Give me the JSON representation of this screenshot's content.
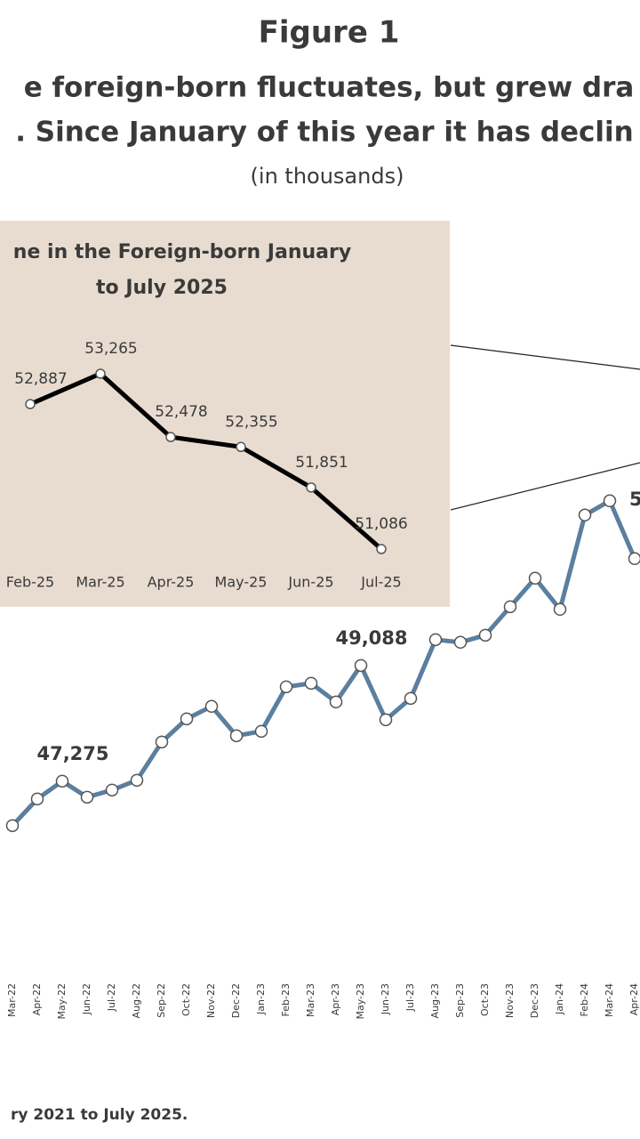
{
  "header": {
    "title": "Figure 1",
    "subtitle": [
      "e foreign-born fluctuates, but grew dra",
      ". Since January of this year it has declin"
    ],
    "unit_note": "(in thousands)"
  },
  "chart_data": [
    {
      "type": "line",
      "categories": [
        "Mar-22",
        "Apr-22",
        "May-22",
        "Jun-22",
        "Jul-22",
        "Aug-22",
        "Sep-22",
        "Oct-22",
        "Nov-22",
        "Dec-22",
        "Jan-23",
        "Feb-23",
        "Mar-23",
        "Apr-23",
        "May-23",
        "Jun-23",
        "Jul-23",
        "Aug-23",
        "Sep-23",
        "Oct-23",
        "Nov-23",
        "Dec-23",
        "Jan-24",
        "Feb-24",
        "Mar-24",
        "Apr-24"
      ],
      "series": [
        {
          "color": "#5b7f9e",
          "values": [
            46578,
            46996,
            47275,
            47024,
            47136,
            47289,
            47889,
            48251,
            48447,
            47986,
            48056,
            48753,
            48809,
            48516,
            49088,
            48237,
            48572,
            49492,
            49451,
            49562,
            50008,
            50455,
            49967,
            51445,
            51668,
            50762
          ],
          "value_labels": [
            null,
            null,
            "47,275",
            null,
            null,
            null,
            null,
            null,
            null,
            null,
            null,
            null,
            null,
            null,
            "49,088",
            null,
            null,
            null,
            null,
            null,
            null,
            null,
            null,
            null,
            null,
            null
          ]
        }
      ],
      "ylim": [
        45000,
        52000
      ],
      "annotation": "5"
    },
    {
      "type": "line",
      "title": [
        "ne in the Foreign-born January",
        "to July 2025"
      ],
      "categories": [
        "Feb-25",
        "Mar-25",
        "Apr-25",
        "May-25",
        "Jun-25",
        "Jul-25"
      ],
      "series": [
        {
          "color": "#000000",
          "values": [
            52887,
            53265,
            52478,
            52355,
            51851,
            51086
          ],
          "value_labels": [
            "52,887",
            "53,265",
            "52,478",
            "52,355",
            "51,851",
            "51,086"
          ]
        }
      ],
      "ylim": [
        50500,
        54000
      ]
    }
  ],
  "footnote": "ry 2021 to July 2025."
}
